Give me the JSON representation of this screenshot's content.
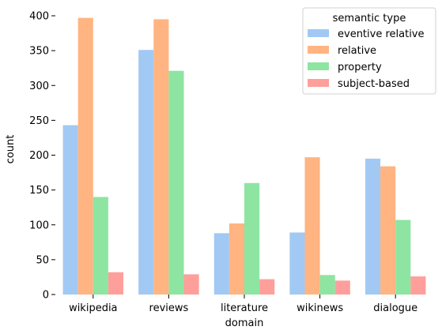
{
  "chart_data": {
    "type": "bar",
    "title": "",
    "xlabel": "domain",
    "ylabel": "count",
    "ylim": [
      0,
      400
    ],
    "yticks": [
      0,
      50,
      100,
      150,
      200,
      250,
      300,
      350,
      400
    ],
    "grid": false,
    "legend": {
      "title": "semantic type",
      "placement": "top-right"
    },
    "categories": [
      "wikipedia",
      "reviews",
      "literature",
      "wikinews",
      "dialogue"
    ],
    "series": [
      {
        "name": "eventive relative",
        "color": "#a1c9f4",
        "values": [
          243,
          351,
          88,
          89,
          195
        ]
      },
      {
        "name": "relative",
        "color": "#ffb482",
        "values": [
          397,
          395,
          102,
          197,
          184
        ]
      },
      {
        "name": "property",
        "color": "#8de5a1",
        "values": [
          140,
          321,
          160,
          28,
          107
        ]
      },
      {
        "name": "subject-based",
        "color": "#ff9f9b",
        "values": [
          32,
          29,
          22,
          20,
          26
        ]
      }
    ]
  }
}
